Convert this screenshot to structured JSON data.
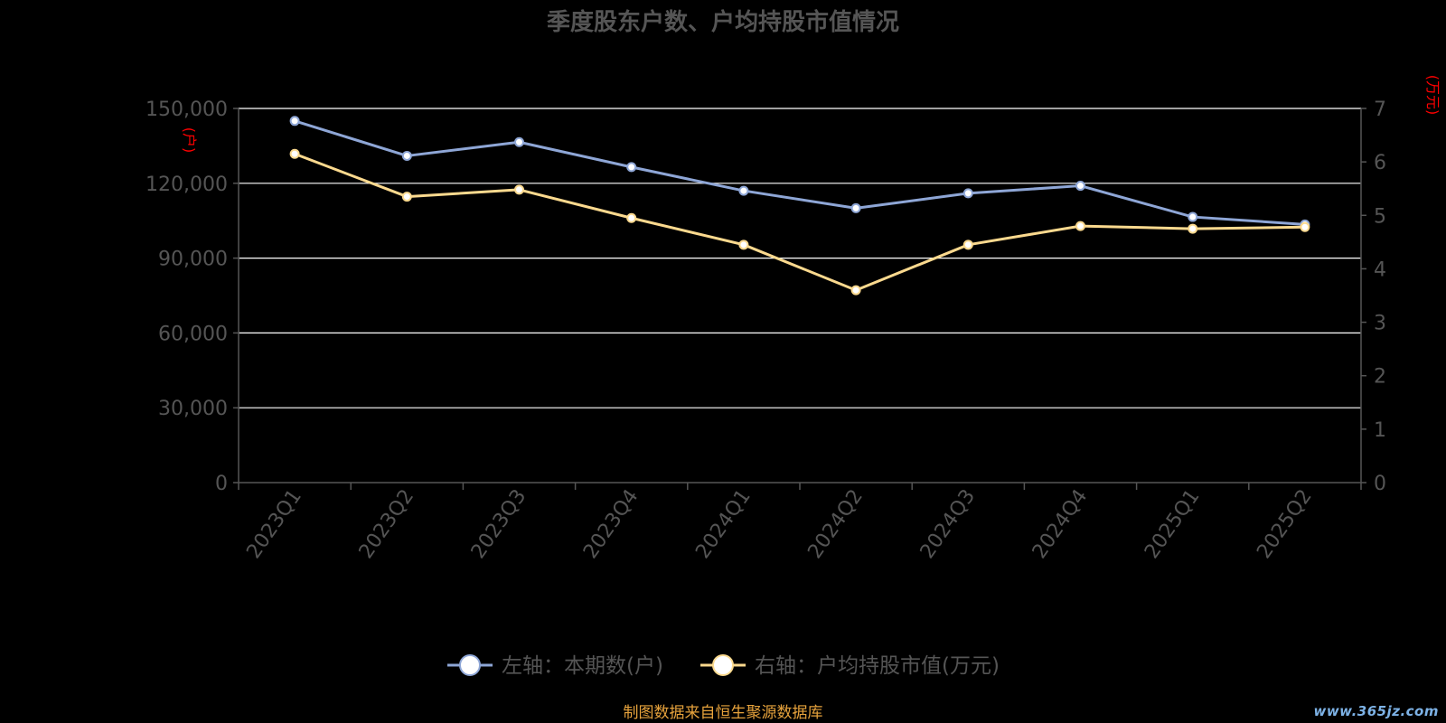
{
  "chart_data": {
    "type": "line",
    "title": "季度股东户数、户均持股市值情况",
    "categories": [
      "2023Q1",
      "2023Q2",
      "2023Q3",
      "2023Q4",
      "2024Q1",
      "2024Q2",
      "2024Q3",
      "2024Q4",
      "2025Q1",
      "2025Q2"
    ],
    "left_axis": {
      "unit_label": "(户)",
      "range": [
        0,
        150000
      ],
      "ticks": [
        0,
        30000,
        60000,
        90000,
        120000,
        150000
      ],
      "tick_labels": [
        "0",
        "30,000",
        "60,000",
        "90,000",
        "120,000",
        "150,000"
      ]
    },
    "right_axis": {
      "unit_label": "(万元)",
      "range": [
        0,
        7
      ],
      "ticks": [
        0,
        1,
        2,
        3,
        4,
        5,
        6,
        7
      ],
      "tick_labels": [
        "0",
        "1",
        "2",
        "3",
        "4",
        "5",
        "6",
        "7"
      ]
    },
    "series": [
      {
        "name": "左轴：本期数(户)",
        "axis": "left",
        "color": "#8ea6d6",
        "values": [
          145000,
          131000,
          136500,
          126500,
          117000,
          110000,
          116000,
          119000,
          106500,
          103500
        ]
      },
      {
        "name": "右轴：户均持股市值(万元)",
        "axis": "right",
        "color": "#fbd98e",
        "values": [
          6.15,
          5.35,
          5.48,
          4.95,
          4.45,
          3.6,
          4.45,
          4.8,
          4.75,
          4.78
        ]
      }
    ],
    "grid": true,
    "legend_position": "bottom-center"
  },
  "source_note": "制图数据来自恒生聚源数据库",
  "watermark": "www.365jz.com",
  "colors": {
    "background": "#000000",
    "axis_text": "#555555",
    "grid": "#ffffff",
    "unit_label": "#ff0000",
    "source_note": "#e6a23c",
    "watermark": "#7db2e6"
  }
}
